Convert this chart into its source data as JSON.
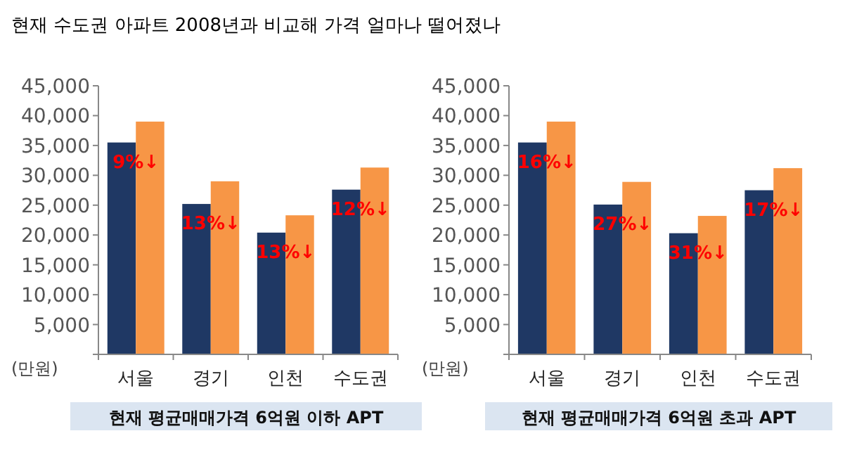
{
  "chart_data": [
    {
      "type": "bar",
      "title": "현재 수도권 아파트 2008년과 비교해 가격 얼마나 떨어졌나",
      "xlabel": "현재 평균매매가격 6억원 이하 APT",
      "ylabel": "(만원)",
      "categories": [
        "서울",
        "경기",
        "인천",
        "수도권"
      ],
      "series": [
        {
          "color": "#1f3864",
          "values": [
            35500,
            25200,
            20400,
            27600
          ]
        },
        {
          "color": "#f79646",
          "values": [
            39000,
            29000,
            23300,
            31300
          ]
        }
      ],
      "ylim": [
        0,
        45000
      ],
      "yticks": [
        {
          "value": 0,
          "label": null
        },
        {
          "value": 5000,
          "label": "5,000"
        },
        {
          "value": 10000,
          "label": "10,000"
        },
        {
          "value": 15000,
          "label": "15,000"
        },
        {
          "value": 20000,
          "label": "20,000"
        },
        {
          "value": 25000,
          "label": "25,000"
        },
        {
          "value": 30000,
          "label": "30,000"
        },
        {
          "value": 35000,
          "label": "35,000"
        },
        {
          "value": 40000,
          "label": "40,000"
        },
        {
          "value": 45000,
          "label": "45,000"
        }
      ],
      "annotations": [
        {
          "text": "9%↓",
          "x": "서울",
          "y": 35500
        },
        {
          "text": "13%↓",
          "x": "경기",
          "y": 25200
        },
        {
          "text": "13%↓",
          "x": "인천",
          "y": 20400
        },
        {
          "text": "12%↓",
          "x": "수도권",
          "y": 27600
        }
      ]
    },
    {
      "type": "bar",
      "xlabel": "현재 평균매매가격 6억원 초과 APT",
      "ylabel": "(만원)",
      "categories": [
        "서울",
        "경기",
        "인천",
        "수도권"
      ],
      "series": [
        {
          "color": "#1f3864",
          "values": [
            35500,
            25100,
            20300,
            27500
          ]
        },
        {
          "color": "#f79646",
          "values": [
            39000,
            28900,
            23200,
            31200
          ]
        }
      ],
      "ylim": [
        0,
        45000
      ],
      "yticks": [
        {
          "value": 0,
          "label": null
        },
        {
          "value": 5000,
          "label": "5,000"
        },
        {
          "value": 10000,
          "label": "10,000"
        },
        {
          "value": 15000,
          "label": "15,000"
        },
        {
          "value": 20000,
          "label": "20,000"
        },
        {
          "value": 25000,
          "label": "25,000"
        },
        {
          "value": 30000,
          "label": "30,000"
        },
        {
          "value": 35000,
          "label": "35,000"
        },
        {
          "value": 40000,
          "label": "40,000"
        },
        {
          "value": 45000,
          "label": "45,000"
        }
      ],
      "annotations": [
        {
          "text": "16%↓",
          "x": "서울",
          "y": 35500
        },
        {
          "text": "27%↓",
          "x": "경기",
          "y": 25100
        },
        {
          "text": "31%↓",
          "x": "인천",
          "y": 20300
        },
        {
          "text": "17%↓",
          "x": "수도권",
          "y": 27500
        }
      ]
    }
  ]
}
